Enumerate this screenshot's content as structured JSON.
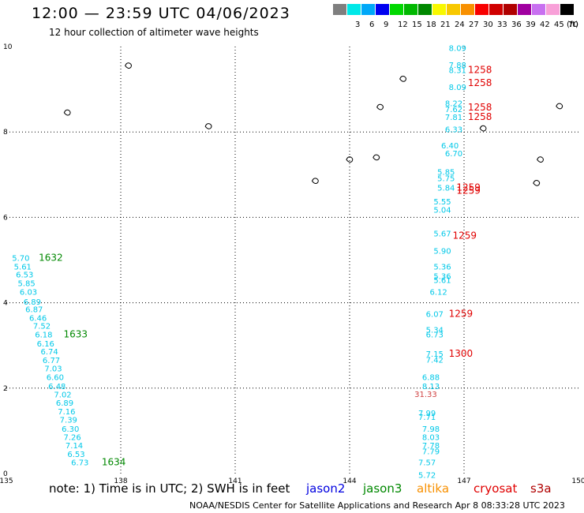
{
  "title": "12:00 — 23:59 UTC 04/06/2023",
  "subtitle": "12 hour collection of altimeter wave heights",
  "legend": {
    "unit": "(ft)",
    "swatches": [
      {
        "color": "#7f7f7f",
        "label": ""
      },
      {
        "color": "#00e8e8",
        "label": "3"
      },
      {
        "color": "#00a8f8",
        "label": "6"
      },
      {
        "color": "#0000f0",
        "label": "9"
      },
      {
        "color": "#00d800",
        "label": "12"
      },
      {
        "color": "#00b800",
        "label": "15"
      },
      {
        "color": "#008800",
        "label": "18"
      },
      {
        "color": "#f8f800",
        "label": "21"
      },
      {
        "color": "#f8c800",
        "label": "24"
      },
      {
        "color": "#f89000",
        "label": "27"
      },
      {
        "color": "#f80000",
        "label": "30"
      },
      {
        "color": "#d00000",
        "label": "33"
      },
      {
        "color": "#b00000",
        "label": "36"
      },
      {
        "color": "#a000a0",
        "label": "39"
      },
      {
        "color": "#c870f0",
        "label": "42"
      },
      {
        "color": "#f8a0d8",
        "label": "45"
      },
      {
        "color": "#000000",
        "label": "70"
      }
    ]
  },
  "axes": {
    "x_ticks": [
      "135",
      "138",
      "141",
      "144",
      "147",
      "150"
    ],
    "y_ticks": [
      "0",
      "2",
      "4",
      "6",
      "8",
      "10"
    ]
  },
  "note": {
    "prefix": "note:  1) Time is in UTC; 2) SWH is in feet",
    "satellites": [
      {
        "name": "jason2",
        "color": "#0000e0"
      },
      {
        "name": "jason3",
        "color": "#008800"
      },
      {
        "name": "altika",
        "color": "#f89000"
      },
      {
        "name": "cryosat",
        "color": "#e00000"
      },
      {
        "name": "s3a",
        "color": "#b00000"
      }
    ]
  },
  "credit": "NOAA/NESDIS Center for Satellite Applications and Research     Apr  8 08:33:28 UTC 2023",
  "tracks": {
    "west": {
      "color": "#00c8e8",
      "values": [
        {
          "lon": 135.15,
          "lat": 4.98,
          "v": "5.70"
        },
        {
          "lon": 135.2,
          "lat": 4.78,
          "v": "5.61"
        },
        {
          "lon": 135.25,
          "lat": 4.59,
          "v": "6.53"
        },
        {
          "lon": 135.3,
          "lat": 4.39,
          "v": "5.85"
        },
        {
          "lon": 135.35,
          "lat": 4.19,
          "v": "6.03"
        },
        {
          "lon": 135.45,
          "lat": 3.96,
          "v": "6.89"
        },
        {
          "lon": 135.5,
          "lat": 3.78,
          "v": "6.87"
        },
        {
          "lon": 135.6,
          "lat": 3.58,
          "v": "6.46"
        },
        {
          "lon": 135.7,
          "lat": 3.39,
          "v": "7.52"
        },
        {
          "lon": 135.75,
          "lat": 3.19,
          "v": "6.18"
        },
        {
          "lon": 135.8,
          "lat": 2.98,
          "v": "6.16"
        },
        {
          "lon": 135.9,
          "lat": 2.79,
          "v": "6.74"
        },
        {
          "lon": 135.95,
          "lat": 2.59,
          "v": "6.77"
        },
        {
          "lon": 136.0,
          "lat": 2.39,
          "v": "7.03"
        },
        {
          "lon": 136.05,
          "lat": 2.19,
          "v": "6.60"
        },
        {
          "lon": 136.1,
          "lat": 1.98,
          "v": "6.48"
        },
        {
          "lon": 136.25,
          "lat": 1.78,
          "v": "7.02"
        },
        {
          "lon": 136.3,
          "lat": 1.59,
          "v": "6.89"
        },
        {
          "lon": 136.35,
          "lat": 1.39,
          "v": "7.16"
        },
        {
          "lon": 136.4,
          "lat": 1.19,
          "v": "7.39"
        },
        {
          "lon": 136.45,
          "lat": 0.98,
          "v": "6.30"
        },
        {
          "lon": 136.5,
          "lat": 0.79,
          "v": "7.26"
        },
        {
          "lon": 136.55,
          "lat": 0.59,
          "v": "7.14"
        },
        {
          "lon": 136.6,
          "lat": 0.39,
          "v": "6.53"
        },
        {
          "lon": 136.7,
          "lat": 0.19,
          "v": "6.73"
        }
      ],
      "time_labels": [
        {
          "lon": 135.85,
          "lat": 4.98,
          "t": "1632"
        },
        {
          "lon": 136.5,
          "lat": 3.19,
          "t": "1633"
        },
        {
          "lon": 137.5,
          "lat": 0.19,
          "t": "1634"
        }
      ],
      "time_color": "#008800"
    },
    "east": {
      "color": "#00c8e8",
      "values": [
        {
          "lon": 146.6,
          "lat": 9.9,
          "v": "8.09"
        },
        {
          "lon": 146.6,
          "lat": 9.5,
          "v": "7.88"
        },
        {
          "lon": 146.6,
          "lat": 9.38,
          "v": "8.31"
        },
        {
          "lon": 146.6,
          "lat": 8.98,
          "v": "8.09"
        },
        {
          "lon": 146.5,
          "lat": 8.6,
          "v": "8.22"
        },
        {
          "lon": 146.5,
          "lat": 8.47,
          "v": "7.62"
        },
        {
          "lon": 146.5,
          "lat": 8.28,
          "v": "7.81"
        },
        {
          "lon": 146.5,
          "lat": 7.99,
          "v": "6.33"
        },
        {
          "lon": 146.4,
          "lat": 7.62,
          "v": "6.40"
        },
        {
          "lon": 146.5,
          "lat": 7.43,
          "v": "6.70"
        },
        {
          "lon": 146.3,
          "lat": 7.0,
          "v": "5.85"
        },
        {
          "lon": 146.3,
          "lat": 6.85,
          "v": "5.75"
        },
        {
          "lon": 146.3,
          "lat": 6.63,
          "v": "5.84"
        },
        {
          "lon": 146.2,
          "lat": 6.3,
          "v": "5.55"
        },
        {
          "lon": 146.2,
          "lat": 6.11,
          "v": "5.04"
        },
        {
          "lon": 146.2,
          "lat": 5.55,
          "v": "5.67"
        },
        {
          "lon": 146.2,
          "lat": 5.15,
          "v": "5.90"
        },
        {
          "lon": 146.2,
          "lat": 4.78,
          "v": "5.36"
        },
        {
          "lon": 146.2,
          "lat": 4.56,
          "v": "5.36"
        },
        {
          "lon": 146.2,
          "lat": 4.46,
          "v": "5.61"
        },
        {
          "lon": 146.1,
          "lat": 4.19,
          "v": "6.12"
        },
        {
          "lon": 146.0,
          "lat": 3.67,
          "v": "6.07"
        },
        {
          "lon": 146.0,
          "lat": 3.3,
          "v": "5.34"
        },
        {
          "lon": 146.0,
          "lat": 3.19,
          "v": "6.73"
        },
        {
          "lon": 146.0,
          "lat": 2.74,
          "v": "7.15"
        },
        {
          "lon": 146.0,
          "lat": 2.6,
          "v": "7.42"
        },
        {
          "lon": 145.9,
          "lat": 2.19,
          "v": "6.88"
        },
        {
          "lon": 145.9,
          "lat": 1.98,
          "v": "8.13"
        },
        {
          "lon": 145.8,
          "lat": 1.35,
          "v": "7.99"
        },
        {
          "lon": 145.8,
          "lat": 1.26,
          "v": "7.71"
        },
        {
          "lon": 145.9,
          "lat": 0.98,
          "v": "7.98"
        },
        {
          "lon": 145.9,
          "lat": 0.79,
          "v": "8.03"
        },
        {
          "lon": 145.9,
          "lat": 0.59,
          "v": "7.78"
        },
        {
          "lon": 145.9,
          "lat": 0.45,
          "v": "7.79"
        },
        {
          "lon": 145.8,
          "lat": 0.19,
          "v": "7.57"
        },
        {
          "lon": 145.8,
          "lat": -0.1,
          "v": "5.72"
        }
      ],
      "altika_values": [
        {
          "lon": 145.7,
          "lat": 1.79,
          "v": "31.33"
        }
      ],
      "altika_color": "#d04040",
      "time_labels": [
        {
          "lon": 147.1,
          "lat": 9.38,
          "t": "1258"
        },
        {
          "lon": 147.1,
          "lat": 9.08,
          "t": "1258"
        },
        {
          "lon": 147.1,
          "lat": 8.5,
          "t": "1258"
        },
        {
          "lon": 147.1,
          "lat": 8.28,
          "t": "1258"
        },
        {
          "lon": 146.8,
          "lat": 6.63,
          "t": "1259"
        },
        {
          "lon": 146.8,
          "lat": 6.55,
          "t": "1259"
        },
        {
          "lon": 146.7,
          "lat": 5.5,
          "t": "1259"
        },
        {
          "lon": 146.6,
          "lat": 3.67,
          "t": "1259"
        },
        {
          "lon": 146.6,
          "lat": 2.74,
          "t": "1300"
        }
      ],
      "time_color": "#e00000"
    }
  },
  "islands": [
    {
      "lon": 138.2,
      "lat": 9.55
    },
    {
      "lon": 136.6,
      "lat": 8.45
    },
    {
      "lon": 140.3,
      "lat": 8.13
    },
    {
      "lon": 144.8,
      "lat": 8.58
    },
    {
      "lon": 145.4,
      "lat": 9.24
    },
    {
      "lon": 144.0,
      "lat": 7.35
    },
    {
      "lon": 143.1,
      "lat": 6.85
    },
    {
      "lon": 147.5,
      "lat": 8.08
    },
    {
      "lon": 149.0,
      "lat": 7.35
    },
    {
      "lon": 149.5,
      "lat": 8.6
    },
    {
      "lon": 148.9,
      "lat": 6.8
    },
    {
      "lon": 144.7,
      "lat": 7.4
    }
  ]
}
